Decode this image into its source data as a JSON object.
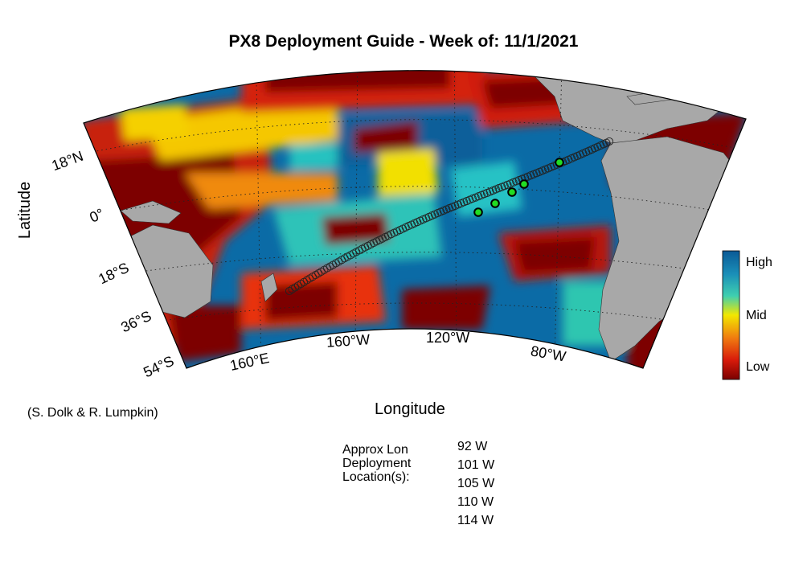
{
  "title": "PX8 Deployment Guide - Week of: 11/1/2021",
  "xlabel": "Longitude",
  "ylabel": "Latitude",
  "credit": "(S. Dolk & R. Lumpkin)",
  "lat_ticks": [
    "18°N",
    "0°",
    "18°S",
    "36°S",
    "54°S"
  ],
  "lon_ticks": [
    "160°E",
    "160°W",
    "120°W",
    "80°W"
  ],
  "colorbar": {
    "labels": [
      "High",
      "Mid",
      "Low"
    ],
    "colors": [
      "#0a6aa5",
      "#27c2c0",
      "#f6e400",
      "#e8280a",
      "#7d0000"
    ]
  },
  "map_colors": {
    "land": "#a8a8a8",
    "high": "#0a6aa5",
    "mid": "#f2e000",
    "low": "#7d0000"
  },
  "deployment": {
    "label_lines": [
      "Approx Lon",
      "Deployment",
      "Location(s):"
    ],
    "locations": [
      "92 W",
      "101 W",
      "105 W",
      "110 W",
      "114 W"
    ]
  }
}
